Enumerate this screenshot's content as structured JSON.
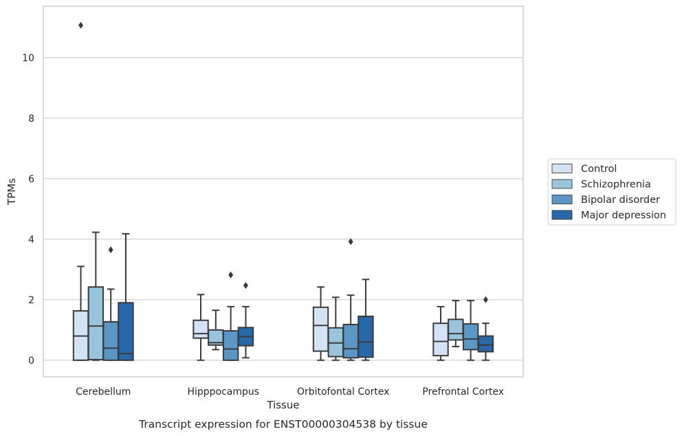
{
  "chart_data": {
    "type": "box",
    "title": "",
    "caption": "Transcript expression for ENST00000304538 by tissue",
    "xlabel": "Tissue",
    "ylabel": "TPMs",
    "ylim": [
      -0.55,
      11.7
    ],
    "yticks": [
      0,
      2,
      4,
      6,
      8,
      10
    ],
    "grid": "horizontal",
    "legend_position": "right",
    "categories": [
      "Cerebellum",
      "Hipppocampus",
      "Orbitofontal Cortex",
      "Prefrontal Cortex"
    ],
    "series": [
      {
        "name": "Control",
        "color": "#d4e3f3",
        "boxes": [
          {
            "whislo": 0.0,
            "q1": 0.0,
            "med": 0.8,
            "q3": 1.63,
            "whishi": 3.1,
            "fliers": [
              11.07
            ]
          },
          {
            "whislo": 0.0,
            "q1": 0.73,
            "med": 0.88,
            "q3": 1.32,
            "whishi": 2.17,
            "fliers": []
          },
          {
            "whislo": 0.0,
            "q1": 0.3,
            "med": 1.15,
            "q3": 1.75,
            "whishi": 2.42,
            "fliers": []
          },
          {
            "whislo": 0.0,
            "q1": 0.15,
            "med": 0.62,
            "q3": 1.22,
            "whishi": 1.77,
            "fliers": []
          }
        ]
      },
      {
        "name": "Schizophrenia",
        "color": "#9ac3dc",
        "boxes": [
          {
            "whislo": 0.0,
            "q1": 0.02,
            "med": 1.13,
            "q3": 2.42,
            "whishi": 4.23,
            "fliers": []
          },
          {
            "whislo": 0.35,
            "q1": 0.5,
            "med": 0.58,
            "q3": 1.0,
            "whishi": 1.65,
            "fliers": []
          },
          {
            "whislo": 0.0,
            "q1": 0.12,
            "med": 0.57,
            "q3": 1.07,
            "whishi": 2.08,
            "fliers": []
          },
          {
            "whislo": 0.45,
            "q1": 0.67,
            "med": 0.88,
            "q3": 1.35,
            "whishi": 1.97,
            "fliers": []
          }
        ]
      },
      {
        "name": "Bipolar disorder",
        "color": "#5a97c5",
        "boxes": [
          {
            "whislo": 0.0,
            "q1": 0.0,
            "med": 0.4,
            "q3": 1.27,
            "whishi": 2.35,
            "fliers": [
              3.65
            ]
          },
          {
            "whislo": 0.0,
            "q1": 0.0,
            "med": 0.37,
            "q3": 0.97,
            "whishi": 1.77,
            "fliers": [
              2.82
            ]
          },
          {
            "whislo": 0.0,
            "q1": 0.08,
            "med": 0.38,
            "q3": 1.18,
            "whishi": 2.15,
            "fliers": [
              3.92
            ]
          },
          {
            "whislo": 0.0,
            "q1": 0.35,
            "med": 0.7,
            "q3": 1.2,
            "whishi": 1.97,
            "fliers": []
          }
        ]
      },
      {
        "name": "Major depression",
        "color": "#2768ab",
        "boxes": [
          {
            "whislo": 0.0,
            "q1": 0.0,
            "med": 0.22,
            "q3": 1.9,
            "whishi": 4.18,
            "fliers": []
          },
          {
            "whislo": 0.08,
            "q1": 0.48,
            "med": 0.78,
            "q3": 1.08,
            "whishi": 1.77,
            "fliers": [
              2.47
            ]
          },
          {
            "whislo": 0.0,
            "q1": 0.1,
            "med": 0.6,
            "q3": 1.45,
            "whishi": 2.67,
            "fliers": []
          },
          {
            "whislo": 0.0,
            "q1": 0.28,
            "med": 0.5,
            "q3": 0.8,
            "whishi": 1.22,
            "fliers": [
              2.0
            ]
          }
        ]
      }
    ]
  }
}
